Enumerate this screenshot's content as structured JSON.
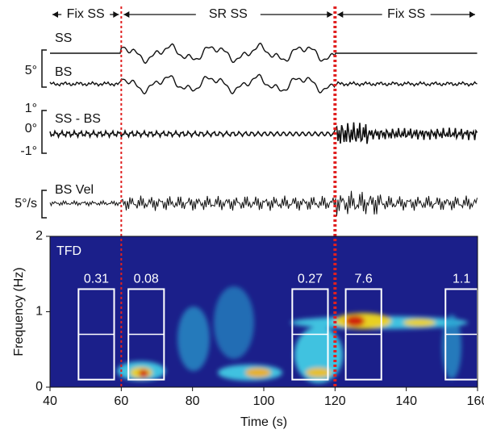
{
  "chart_data": {
    "type": "tfd",
    "phases": [
      {
        "label": "Fix SS",
        "x": [
          40,
          60
        ]
      },
      {
        "label": "SR SS",
        "x": [
          60,
          120
        ]
      },
      {
        "label": "Fix SS",
        "x": [
          120,
          160
        ]
      }
    ],
    "markers": [
      60,
      120
    ],
    "traces": [
      "SS",
      "BS",
      "SS - BS",
      "BS Vel"
    ],
    "scale_labels": [
      "5°",
      "1°",
      "0°",
      "-1°",
      "5°/s"
    ],
    "panel_label": "TFD",
    "xlabel": "Time (s)",
    "ylabel": "Frequency (Hz)",
    "xlim": [
      40,
      160
    ],
    "xticks": [
      40,
      60,
      80,
      100,
      120,
      140,
      160
    ],
    "ylim": [
      0,
      2
    ],
    "yticks": [
      0,
      1,
      2
    ],
    "box_ylim": [
      0.1,
      1.3
    ],
    "windows": [
      {
        "value": 0.31,
        "x": [
          48,
          58
        ]
      },
      {
        "value": 0.08,
        "x": [
          62,
          72
        ]
      },
      {
        "value": 0.27,
        "x": [
          108,
          118
        ]
      },
      {
        "value": 7.6,
        "x": [
          123,
          133
        ]
      },
      {
        "value": 1.1,
        "x": [
          151,
          160
        ]
      }
    ]
  }
}
